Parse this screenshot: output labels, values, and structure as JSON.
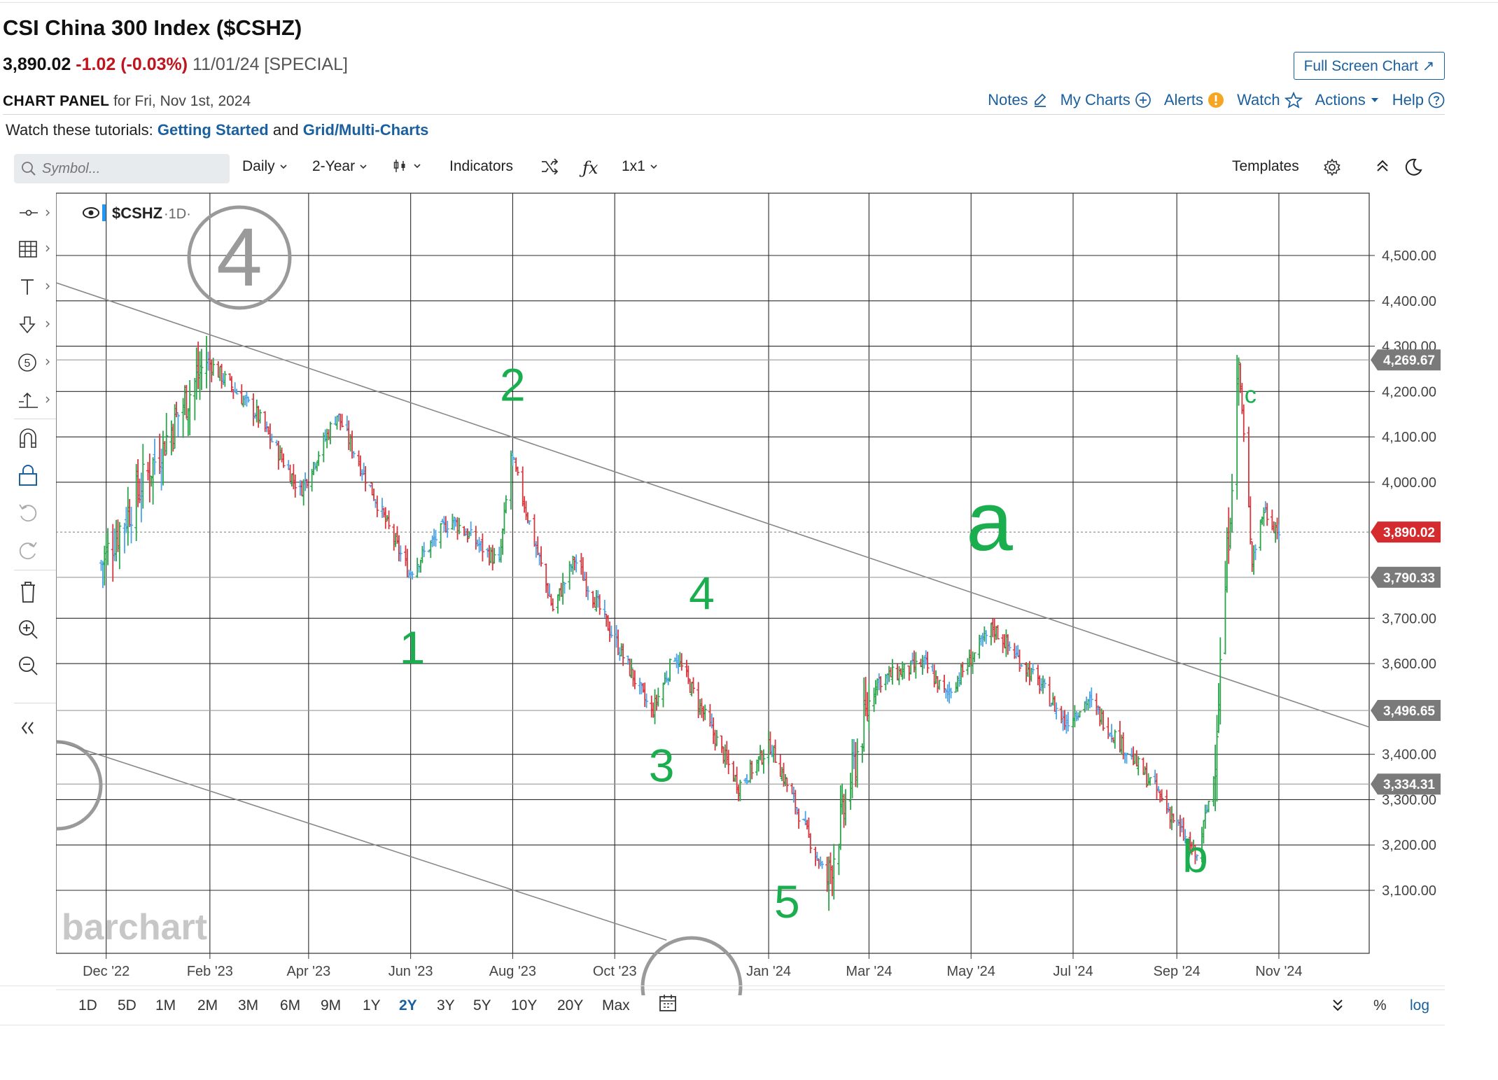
{
  "header": {
    "title": "CSI China 300 Index ($CSHZ)",
    "last": "3,890.02",
    "change": "-1.02 (-0.03%)",
    "date_note": "11/01/24 [SPECIAL]",
    "fullscreen_label": "Full Screen Chart ↗"
  },
  "panel": {
    "title": "CHART PANEL",
    "for_text": "for Fri, Nov 1st, 2024",
    "actions": [
      {
        "label": "Notes",
        "icon": "edit-icon"
      },
      {
        "label": "My Charts",
        "icon": "plus-circle-icon"
      },
      {
        "label": "Alerts",
        "icon": "alert-icon"
      },
      {
        "label": "Watch",
        "icon": "star-icon"
      },
      {
        "label": "Actions",
        "icon": "caret-down-icon"
      },
      {
        "label": "Help",
        "icon": "help-icon"
      }
    ]
  },
  "tutorials": {
    "prefix": "Watch these tutorials:",
    "link1": "Getting Started",
    "middle": "and",
    "link2": "Grid/Multi-Charts"
  },
  "toolbar": {
    "search_placeholder": "Symbol...",
    "interval": "Daily",
    "range": "2-Year",
    "indicators": "Indicators",
    "layout": "1x1",
    "templates": "Templates"
  },
  "periods": [
    "1D",
    "5D",
    "1M",
    "2M",
    "3M",
    "6M",
    "9M",
    "1Y",
    "2Y",
    "3Y",
    "5Y",
    "10Y",
    "20Y",
    "Max"
  ],
  "active_period": "2Y",
  "bottom_right": {
    "percent": "%",
    "log": "log"
  },
  "colors": {
    "up": "#2aa44a",
    "down": "#d6363d",
    "neutral": "#4aa3e8",
    "accent": "#1a5f9e",
    "annotation": "#1aae4e",
    "tag_gray": "#7a7a7a",
    "tag_red": "#d52b2f"
  },
  "chart_data": {
    "type": "ohlc",
    "symbol_label": "$CSHZ",
    "interval_label": "·1D·",
    "watermark": "barchart",
    "y_axis": {
      "ticks": [
        3100,
        3200,
        3300,
        3400,
        3600,
        3700,
        4000,
        4100,
        4200,
        4300,
        4400,
        4500
      ],
      "tick_labels": [
        "3,100.00",
        "3,200.00",
        "3,300.00",
        "3,400.00",
        "3,600.00",
        "3,700.00",
        "4,000.00",
        "4,100.00",
        "4,200.00",
        "4,300.00",
        "4,400.00",
        "4,500.00"
      ]
    },
    "x_axis": {
      "labels": [
        "Dec '22",
        "Feb '23",
        "Apr '23",
        "Jun '23",
        "Aug '23",
        "Oct '23",
        "Jan '24",
        "Mar '24",
        "May '24",
        "Jul '24",
        "Sep '24",
        "Nov '24"
      ],
      "label_dates": [
        "2022-12-01",
        "2023-02-01",
        "2023-04-01",
        "2023-06-01",
        "2023-08-01",
        "2023-10-01",
        "2024-01-01",
        "2024-03-01",
        "2024-05-01",
        "2024-07-01",
        "2024-09-01",
        "2024-11-01"
      ]
    },
    "price_tags": [
      {
        "value": 4269.67,
        "label": "4,269.67",
        "style": "gray"
      },
      {
        "value": 3890.02,
        "label": "3,890.02",
        "style": "red"
      },
      {
        "value": 3790.33,
        "label": "3,790.33",
        "style": "gray"
      },
      {
        "value": 3496.65,
        "label": "3,496.65",
        "style": "gray"
      },
      {
        "value": 3334.31,
        "label": "3,334.31",
        "style": "gray"
      }
    ],
    "key_points": [
      {
        "date": "2022-11-28",
        "price": 3820
      },
      {
        "date": "2023-01-30",
        "price": 4270
      },
      {
        "date": "2023-03-01",
        "price": 4150
      },
      {
        "date": "2023-03-27",
        "price": 3980
      },
      {
        "date": "2023-04-18",
        "price": 4150
      },
      {
        "date": "2023-05-31",
        "price": 3800
      },
      {
        "date": "2023-06-25",
        "price": 3920
      },
      {
        "date": "2023-07-24",
        "price": 3820
      },
      {
        "date": "2023-07-31",
        "price": 4060
      },
      {
        "date": "2023-08-25",
        "price": 3720
      },
      {
        "date": "2023-09-07",
        "price": 3830
      },
      {
        "date": "2023-10-23",
        "price": 3490
      },
      {
        "date": "2023-11-06",
        "price": 3620
      },
      {
        "date": "2023-12-14",
        "price": 3330
      },
      {
        "date": "2024-01-02",
        "price": 3420
      },
      {
        "date": "2024-02-05",
        "price": 3120
      },
      {
        "date": "2024-03-04",
        "price": 3560
      },
      {
        "date": "2024-04-03",
        "price": 3600
      },
      {
        "date": "2024-04-16",
        "price": 3530
      },
      {
        "date": "2024-05-14",
        "price": 3680
      },
      {
        "date": "2024-06-14",
        "price": 3540
      },
      {
        "date": "2024-06-26",
        "price": 3470
      },
      {
        "date": "2024-07-10",
        "price": 3520
      },
      {
        "date": "2024-07-22",
        "price": 3460
      },
      {
        "date": "2024-08-20",
        "price": 3320
      },
      {
        "date": "2024-09-13",
        "price": 3170
      },
      {
        "date": "2024-09-23",
        "price": 3350
      },
      {
        "date": "2024-10-08",
        "price": 4260
      },
      {
        "date": "2024-10-16",
        "price": 3830
      },
      {
        "date": "2024-10-23",
        "price": 3940
      },
      {
        "date": "2024-11-01",
        "price": 3890
      }
    ],
    "annotations": [
      {
        "text": "1",
        "date": "2023-06-02",
        "price": 3600
      },
      {
        "text": "2",
        "date": "2023-08-01",
        "price": 4180
      },
      {
        "text": "3",
        "date": "2023-10-29",
        "price": 3340
      },
      {
        "text": "4",
        "date": "2023-11-22",
        "price": 3720
      },
      {
        "text": "5",
        "date": "2024-01-12",
        "price": 3040
      },
      {
        "text": "a",
        "date": "2024-05-12",
        "price": 3850
      },
      {
        "text": "b",
        "date": "2024-09-12",
        "price": 3140
      },
      {
        "text": "c",
        "date": "2024-10-15",
        "price": 4175
      }
    ],
    "trendlines": [
      {
        "from": {
          "date": "2022-11-01",
          "price": 4440
        },
        "to": {
          "date": "2024-12-25",
          "price": 3460
        }
      },
      {
        "from": {
          "date": "2022-11-01",
          "price": 3430
        },
        "to": {
          "date": "2023-11-01",
          "price": 2990
        }
      }
    ]
  }
}
